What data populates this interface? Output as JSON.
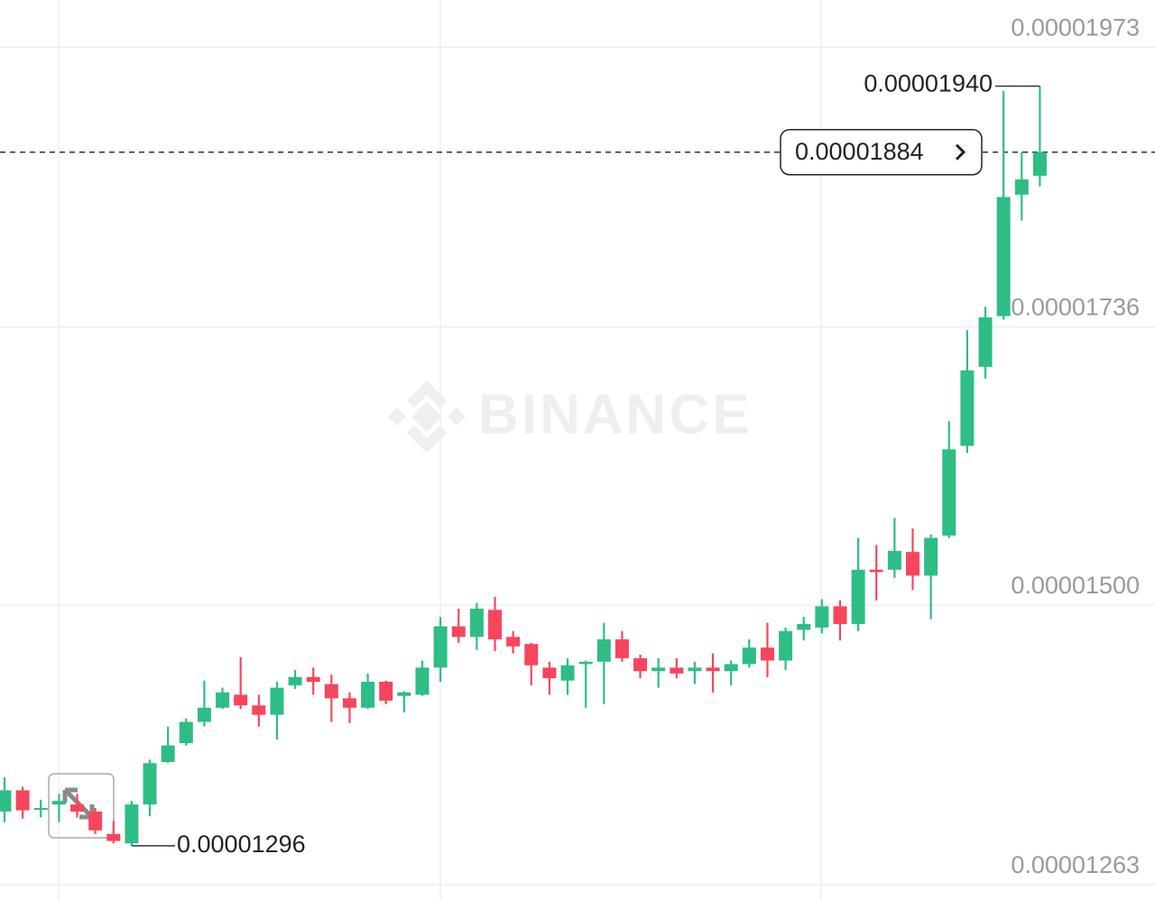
{
  "chart_data": {
    "type": "candlestick",
    "watermark": "BINANCE",
    "up_color": "#2ebd85",
    "down_color": "#f6465d",
    "grid": true,
    "ylim": [
      1.25e-05,
      2.013e-05
    ],
    "yticks": [
      {
        "value": 1.263e-05,
        "label": "0.00001263"
      },
      {
        "value": 1.5e-05,
        "label": "0.00001500"
      },
      {
        "value": 1.736e-05,
        "label": "0.00001736"
      },
      {
        "value": 1.973e-05,
        "label": "0.00001973"
      }
    ],
    "open": [
      1.325e-05,
      1.343e-05,
      1.327e-05,
      1.331e-05,
      1.331e-05,
      1.325e-05,
      1.306e-05,
      1.298e-05,
      1.331e-05,
      1.367e-05,
      1.383e-05,
      1.401e-05,
      1.413e-05,
      1.424e-05,
      1.415e-05,
      1.407e-05,
      1.432e-05,
      1.439e-05,
      1.433e-05,
      1.421e-05,
      1.413e-05,
      1.435e-05,
      1.423e-05,
      1.424e-05,
      1.447e-05,
      1.482e-05,
      1.473e-05,
      1.496e-05,
      1.473e-05,
      1.467e-05,
      1.447e-05,
      1.436e-05,
      1.45e-05,
      1.452e-05,
      1.471e-05,
      1.455e-05,
      1.444e-05,
      1.447e-05,
      1.444e-05,
      1.447e-05,
      1.444e-05,
      1.45e-05,
      1.464e-05,
      1.453e-05,
      1.479e-05,
      1.481e-05,
      1.499e-05,
      1.484e-05,
      1.53e-05,
      1.53e-05,
      1.545e-05,
      1.525e-05,
      1.559e-05,
      1.635e-05,
      1.702e-05,
      1.745e-05,
      1.848e-05,
      1.864e-05
    ],
    "high": [
      1.354e-05,
      1.346e-05,
      1.335e-05,
      1.34e-05,
      1.34e-05,
      1.328e-05,
      1.317e-05,
      1.334e-05,
      1.369e-05,
      1.397e-05,
      1.404e-05,
      1.436e-05,
      1.43e-05,
      1.456e-05,
      1.424e-05,
      1.435e-05,
      1.445e-05,
      1.447e-05,
      1.441e-05,
      1.426e-05,
      1.442e-05,
      1.436e-05,
      1.427e-05,
      1.453e-05,
      1.49e-05,
      1.497e-05,
      1.502e-05,
      1.507e-05,
      1.478e-05,
      1.468e-05,
      1.452e-05,
      1.455e-05,
      1.453e-05,
      1.485e-05,
      1.478e-05,
      1.458e-05,
      1.455e-05,
      1.455e-05,
      1.452e-05,
      1.459e-05,
      1.453e-05,
      1.471e-05,
      1.485e-05,
      1.481e-05,
      1.49e-05,
      1.505e-05,
      1.504e-05,
      1.557e-05,
      1.551e-05,
      1.574e-05,
      1.565e-05,
      1.56e-05,
      1.656e-05,
      1.733e-05,
      1.753e-05,
      1.936e-05,
      1.884e-05,
      1.94e-05
    ],
    "low": [
      1.316e-05,
      1.319e-05,
      1.32e-05,
      1.316e-05,
      1.32e-05,
      1.306e-05,
      1.298e-05,
      1.296e-05,
      1.321e-05,
      1.366e-05,
      1.381e-05,
      1.397e-05,
      1.412e-05,
      1.412e-05,
      1.397e-05,
      1.386e-05,
      1.429e-05,
      1.424e-05,
      1.401e-05,
      1.4e-05,
      1.412e-05,
      1.416e-05,
      1.409e-05,
      1.423e-05,
      1.435e-05,
      1.468e-05,
      1.462e-05,
      1.461e-05,
      1.459e-05,
      1.432e-05,
      1.424e-05,
      1.424e-05,
      1.413e-05,
      1.416e-05,
      1.452e-05,
      1.438e-05,
      1.43e-05,
      1.438e-05,
      1.433e-05,
      1.426e-05,
      1.432e-05,
      1.447e-05,
      1.439e-05,
      1.445e-05,
      1.47e-05,
      1.476e-05,
      1.47e-05,
      1.478e-05,
      1.504e-05,
      1.523e-05,
      1.513e-05,
      1.488e-05,
      1.557e-05,
      1.629e-05,
      1.692e-05,
      1.742e-05,
      1.826e-05,
      1.855e-05
    ],
    "close": [
      1.343e-05,
      1.326e-05,
      1.328e-05,
      1.334e-05,
      1.325e-05,
      1.309e-05,
      1.3e-05,
      1.331e-05,
      1.366e-05,
      1.381e-05,
      1.401e-05,
      1.413e-05,
      1.426e-05,
      1.415e-05,
      1.407e-05,
      1.43e-05,
      1.439e-05,
      1.435e-05,
      1.421e-05,
      1.413e-05,
      1.435e-05,
      1.419e-05,
      1.426e-05,
      1.447e-05,
      1.482e-05,
      1.473e-05,
      1.497e-05,
      1.471e-05,
      1.465e-05,
      1.449e-05,
      1.438e-05,
      1.449e-05,
      1.452e-05,
      1.471e-05,
      1.455e-05,
      1.444e-05,
      1.447e-05,
      1.442e-05,
      1.447e-05,
      1.444e-05,
      1.45e-05,
      1.464e-05,
      1.453e-05,
      1.478e-05,
      1.484e-05,
      1.499e-05,
      1.484e-05,
      1.53e-05,
      1.528e-05,
      1.546e-05,
      1.525e-05,
      1.557e-05,
      1.632e-05,
      1.699e-05,
      1.744e-05,
      1.846e-05,
      1.861e-05,
      1.884e-05
    ],
    "annotations": {
      "high": {
        "value": 1.94e-05,
        "label": "0.00001940"
      },
      "low": {
        "value": 1.296e-05,
        "label": "0.00001296"
      },
      "last_price": {
        "value": 1.884e-05,
        "label": "0.00001884"
      }
    }
  }
}
